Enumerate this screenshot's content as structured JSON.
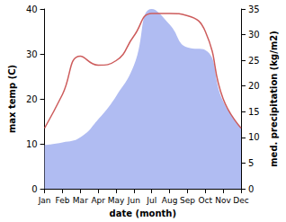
{
  "chart_data": {
    "type": "line",
    "x_label": "date (month)",
    "y_label": "max temp (C)",
    "y2_label": "med. precipitation (kg/m2)",
    "categories": [
      "Jan",
      "Feb",
      "Mar",
      "Apr",
      "May",
      "Jun",
      "Jul",
      "Aug",
      "Sep",
      "Oct",
      "Nov",
      "Dec"
    ],
    "series": [
      {
        "type": "area",
        "axis": "y2",
        "color": "#b0bcf2",
        "values": [
          8.5,
          9,
          10,
          13.5,
          18,
          24,
          35,
          32,
          27.5,
          27,
          17,
          12
        ]
      },
      {
        "type": "line",
        "color": "#cd5c5c",
        "values": [
          13.5,
          21,
          29.5,
          27.5,
          28.5,
          34,
          39,
          39,
          38.5,
          35,
          20,
          13.5
        ]
      }
    ],
    "ylim": [
      0,
      40
    ],
    "yticks": [
      0,
      10,
      20,
      30,
      40
    ],
    "y2lim": [
      0,
      35
    ],
    "y2ticks": [
      0,
      5,
      10,
      15,
      20,
      25,
      30,
      35
    ],
    "grid": false
  }
}
